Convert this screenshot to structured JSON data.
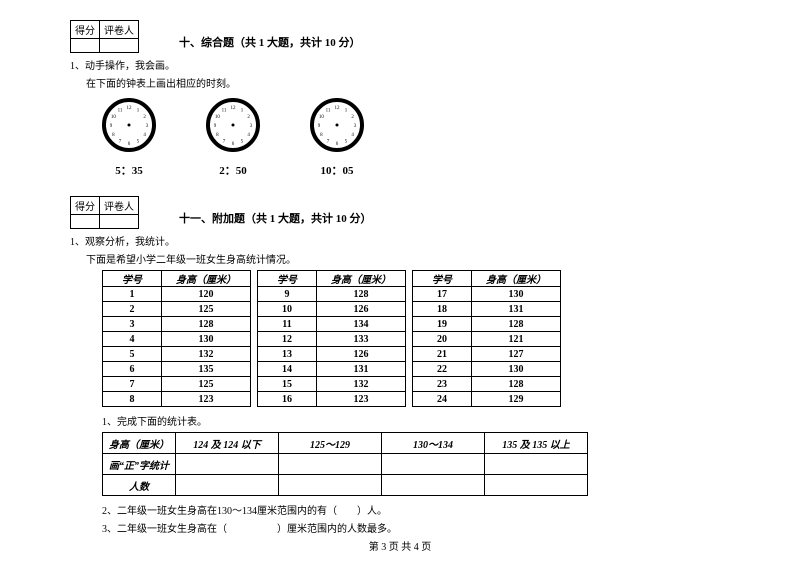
{
  "scorebox": {
    "col1": "得分",
    "col2": "评卷人"
  },
  "section10": {
    "title": "十、综合题（共 1 大题，共计 10 分）",
    "q1": "1、动手操作，我会画。",
    "q1_sub": "在下面的钟表上画出相应的时刻。",
    "clocks": [
      {
        "label": "5：35"
      },
      {
        "label": "2：50"
      },
      {
        "label": "10：05"
      }
    ]
  },
  "section11": {
    "title": "十一、附加题（共 1 大题，共计 10 分）",
    "q1": "1、观察分析，我统计。",
    "q1_sub": "下面是希望小学二年级一班女生身高统计情况。",
    "table_headers": {
      "id": "学号",
      "height": "身高（厘米）"
    },
    "groups": [
      [
        {
          "id": "1",
          "h": "120"
        },
        {
          "id": "2",
          "h": "125"
        },
        {
          "id": "3",
          "h": "128"
        },
        {
          "id": "4",
          "h": "130"
        },
        {
          "id": "5",
          "h": "132"
        },
        {
          "id": "6",
          "h": "135"
        },
        {
          "id": "7",
          "h": "125"
        },
        {
          "id": "8",
          "h": "123"
        }
      ],
      [
        {
          "id": "9",
          "h": "128"
        },
        {
          "id": "10",
          "h": "126"
        },
        {
          "id": "11",
          "h": "134"
        },
        {
          "id": "12",
          "h": "133"
        },
        {
          "id": "13",
          "h": "126"
        },
        {
          "id": "14",
          "h": "131"
        },
        {
          "id": "15",
          "h": "132"
        },
        {
          "id": "16",
          "h": "123"
        }
      ],
      [
        {
          "id": "17",
          "h": "130"
        },
        {
          "id": "18",
          "h": "131"
        },
        {
          "id": "19",
          "h": "128"
        },
        {
          "id": "20",
          "h": "121"
        },
        {
          "id": "21",
          "h": "127"
        },
        {
          "id": "22",
          "h": "130"
        },
        {
          "id": "23",
          "h": "128"
        },
        {
          "id": "24",
          "h": "129"
        }
      ]
    ],
    "sub1": "1、完成下面的统计表。",
    "summary_header": "身高（厘米）",
    "summary_cols": [
      "124 及 124 以下",
      "125～129",
      "130～134",
      "135 及 135 以上"
    ],
    "summary_rows": [
      "画“正”字统计",
      "人数"
    ],
    "sub2": "2、二年级一班女生身高在130～134厘米范围内的有（　　）人。",
    "sub3": "3、二年级一班女生身高在（　　　　　）厘米范围内的人数最多。"
  },
  "footer": "第 3 页 共 4 页",
  "clock_style": {
    "bezel_color": "#000000",
    "face_color": "#ffffff",
    "radius": 25,
    "bezel_width": 4
  }
}
